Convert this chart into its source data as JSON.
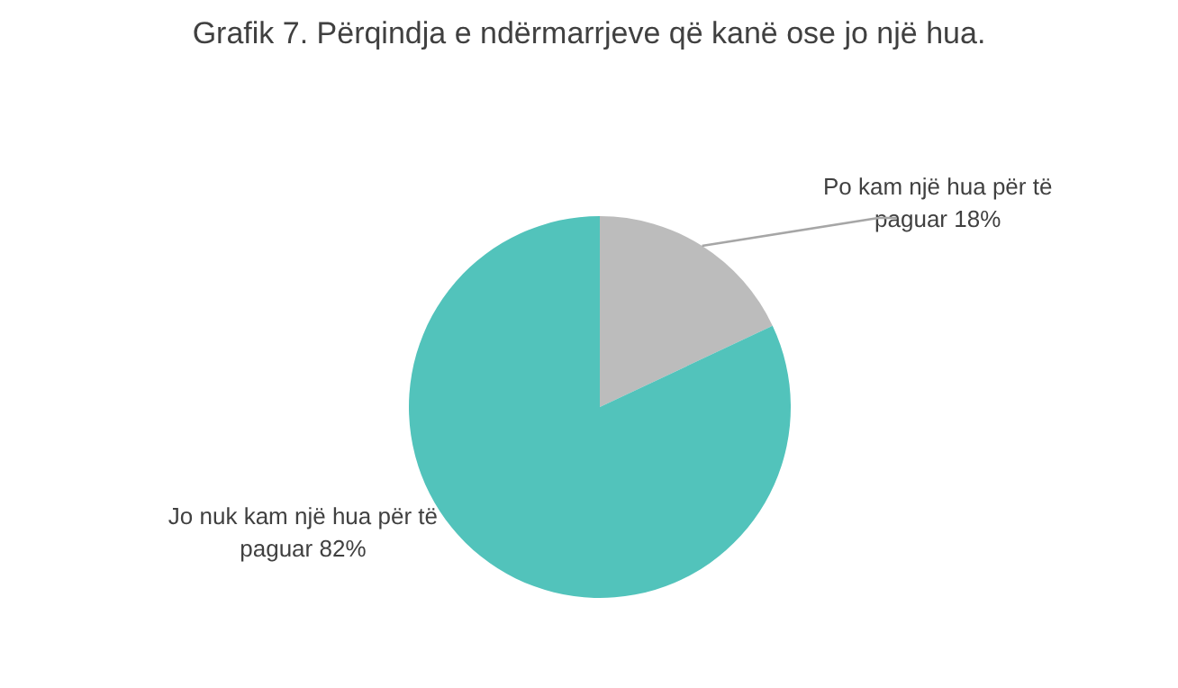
{
  "chart_data": {
    "type": "pie",
    "title": "Grafik 7. Përqindja e ndërmarrjeve që kanë ose jo një hua.",
    "categories": [
      "Po kam një hua për të paguar",
      "Jo nuk kam një hua për të paguar"
    ],
    "values": [
      18,
      82
    ],
    "value_labels": [
      "18%",
      "82%"
    ],
    "colors": [
      "#bcbcbc",
      "#52c3bb"
    ]
  }
}
